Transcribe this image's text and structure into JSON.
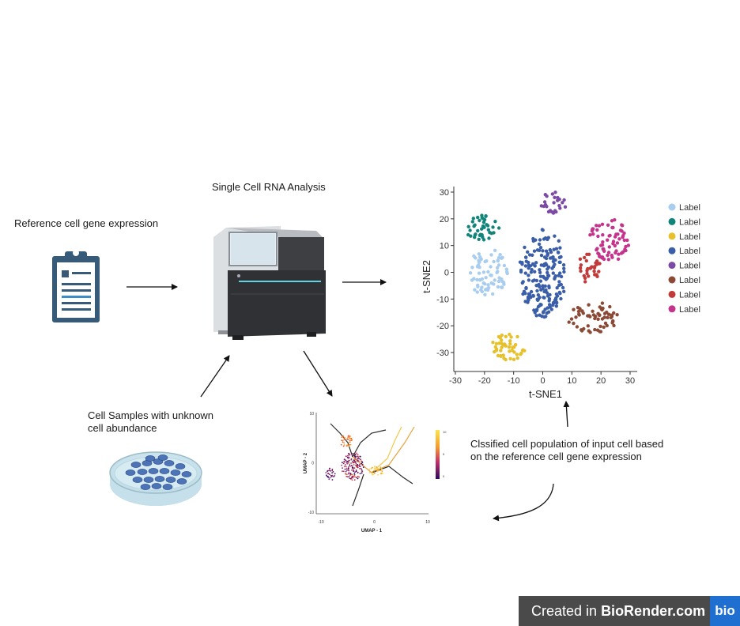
{
  "labels": {
    "reference": "Reference cell gene expression",
    "analysis": "Single Cell RNA Analysis",
    "samples_line1": "Cell Samples with unknown",
    "samples_line2": "cell abundance",
    "classified_line1": "Clssified cell population of input cell based",
    "classified_line2": "on the reference cell gene expression"
  },
  "chart_data": [
    {
      "type": "scatter",
      "xlabel": "t-SNE1",
      "ylabel": "t-SNE2",
      "xlim": [
        -30,
        30
      ],
      "ylim": [
        -35,
        32
      ],
      "x_ticks": [
        "-30",
        "-20",
        "-10",
        "0",
        "10",
        "20",
        "30"
      ],
      "y_ticks": [
        "30",
        "20",
        "10",
        "0",
        "-10",
        "-20",
        "-30"
      ],
      "legend_position": "right",
      "legend": [
        {
          "label": "Label",
          "color": "#a8cdee"
        },
        {
          "label": "Label",
          "color": "#12857a"
        },
        {
          "label": "Label",
          "color": "#e6c12c"
        },
        {
          "label": "Label",
          "color": "#3a5fa8"
        },
        {
          "label": "Label",
          "color": "#7c4aa5"
        },
        {
          "label": "Label",
          "color": "#8b4a36"
        },
        {
          "label": "Label",
          "color": "#c23b3b"
        },
        {
          "label": "Label",
          "color": "#c4338c"
        }
      ],
      "clusters": [
        {
          "color": "#a8cdee",
          "cx": -19,
          "cy": 0,
          "rx": 7,
          "ry": 9,
          "n": 75
        },
        {
          "color": "#12857a",
          "cx": -21,
          "cy": 17,
          "rx": 6,
          "ry": 5,
          "n": 40
        },
        {
          "color": "#e6c12c",
          "cx": -12,
          "cy": -28,
          "rx": 6,
          "ry": 5,
          "n": 45
        },
        {
          "color": "#3a5fa8",
          "cx": 0,
          "cy": 0,
          "rx": 8,
          "ry": 17,
          "n": 190
        },
        {
          "color": "#7c4aa5",
          "cx": 4,
          "cy": 26,
          "rx": 5,
          "ry": 4,
          "n": 25
        },
        {
          "color": "#8b4a36",
          "cx": 17,
          "cy": -17,
          "rx": 9,
          "ry": 6,
          "n": 65
        },
        {
          "color": "#c23b3b",
          "cx": 16,
          "cy": 2,
          "rx": 4,
          "ry": 6,
          "n": 30
        },
        {
          "color": "#c4338c",
          "cx": 23,
          "cy": 12,
          "rx": 7,
          "ry": 8,
          "n": 70
        }
      ]
    },
    {
      "type": "scatter",
      "xlabel": "UMAP - 1",
      "ylabel": "UMAP - 2",
      "xlim": [
        -10,
        10
      ],
      "ylim": [
        -10,
        10
      ],
      "x_ticks": [
        "-10",
        "0",
        "10"
      ],
      "y_ticks": [
        "10",
        "0",
        "-10"
      ],
      "colorbar_ticks": [
        "10",
        "5",
        "0"
      ]
    }
  ],
  "badge": {
    "text_prefix": "Created in ",
    "text_brand": "BioRender.com",
    "logo": "bio"
  }
}
